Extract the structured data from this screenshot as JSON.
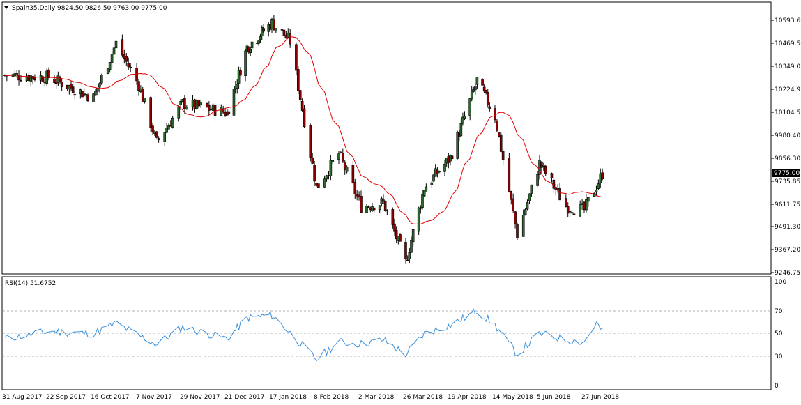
{
  "colors": {
    "background": "#ffffff",
    "frame": "#000000",
    "candle": "#000000",
    "bull_body": "#2e6b2e",
    "bear_body": "#8b0000",
    "ma_line": "#e00000",
    "rsi_line": "#3a8fd9",
    "rsi_levels": "#b0b0b0",
    "last_price_bg": "#000000",
    "last_price_text": "#ffffff"
  },
  "main_panel": {
    "title": "Spain35,Daily",
    "ohlc_text": "9824.50 9826.50 9763.00 9775.00",
    "price_ticks": [
      "10593.60",
      "10469.50",
      "10349.05",
      "10224.95",
      "10104.55",
      "9980.40",
      "9856.30",
      "9735.85",
      "9611.75",
      "9491.30",
      "9367.20",
      "9246.75"
    ],
    "last_price": "9775.00"
  },
  "rsi_panel": {
    "title": "RSI(14) 51.6752",
    "levels": [
      "100",
      "70",
      "50",
      "30",
      "0"
    ]
  },
  "x_axis": {
    "dates": [
      "31 Aug 2017",
      "22 Sep 2017",
      "16 Oct 2017",
      "7 Nov 2017",
      "29 Nov 2017",
      "21 Dec 2017",
      "17 Jan 2018",
      "8 Feb 2018",
      "2 Mar 2018",
      "26 Mar 2018",
      "19 Apr 2018",
      "14 May 2018",
      "5 Jun 2018",
      "27 Jun 2018"
    ]
  },
  "chart_data": [
    {
      "type": "candlestick",
      "title": "Spain35,Daily",
      "ylim": [
        9246.75,
        10593.6
      ],
      "overlay": "moving average (red)",
      "close_path": [
        {
          "x": "31 Aug 2017",
          "y": 10300
        },
        {
          "x": "22 Sep 2017",
          "y": 10290
        },
        {
          "x": "16 Oct 2017",
          "y": 10180
        },
        {
          "x": "27 Oct 2017",
          "y": 10470
        },
        {
          "x": "7 Nov 2017",
          "y": 10250
        },
        {
          "x": "16 Nov 2017",
          "y": 9940
        },
        {
          "x": "29 Nov 2017",
          "y": 10150
        },
        {
          "x": "21 Dec 2017",
          "y": 10100
        },
        {
          "x": "2 Jan 2018",
          "y": 10450
        },
        {
          "x": "17 Jan 2018",
          "y": 10580
        },
        {
          "x": "26 Jan 2018",
          "y": 10480
        },
        {
          "x": "8 Feb 2018",
          "y": 9700
        },
        {
          "x": "19 Feb 2018",
          "y": 9880
        },
        {
          "x": "2 Mar 2018",
          "y": 9600
        },
        {
          "x": "14 Mar 2018",
          "y": 9620
        },
        {
          "x": "26 Mar 2018",
          "y": 9300
        },
        {
          "x": "5 Apr 2018",
          "y": 9700
        },
        {
          "x": "19 Apr 2018",
          "y": 9860
        },
        {
          "x": "4 May 2018",
          "y": 10270
        },
        {
          "x": "14 May 2018",
          "y": 10080
        },
        {
          "x": "25 May 2018",
          "y": 9450
        },
        {
          "x": "5 Jun 2018",
          "y": 9830
        },
        {
          "x": "18 Jun 2018",
          "y": 9600
        },
        {
          "x": "27 Jun 2018",
          "y": 9580
        },
        {
          "x": "6 Jul 2018",
          "y": 9775
        }
      ]
    },
    {
      "type": "line",
      "title": "RSI(14) 51.6752",
      "ylim": [
        0,
        100
      ],
      "levels": [
        30,
        50,
        70
      ],
      "series": [
        {
          "values_path": [
            {
              "x": "31 Aug 2017",
              "y": 45
            },
            {
              "x": "22 Sep 2017",
              "y": 52
            },
            {
              "x": "16 Oct 2017",
              "y": 50
            },
            {
              "x": "27 Oct 2017",
              "y": 60
            },
            {
              "x": "7 Nov 2017",
              "y": 48
            },
            {
              "x": "16 Nov 2017",
              "y": 40
            },
            {
              "x": "29 Nov 2017",
              "y": 56
            },
            {
              "x": "21 Dec 2017",
              "y": 45
            },
            {
              "x": "2 Jan 2018",
              "y": 65
            },
            {
              "x": "17 Jan 2018",
              "y": 68
            },
            {
              "x": "8 Feb 2018",
              "y": 25
            },
            {
              "x": "19 Feb 2018",
              "y": 42
            },
            {
              "x": "2 Mar 2018",
              "y": 40
            },
            {
              "x": "14 Mar 2018",
              "y": 44
            },
            {
              "x": "26 Mar 2018",
              "y": 30
            },
            {
              "x": "5 Apr 2018",
              "y": 50
            },
            {
              "x": "19 Apr 2018",
              "y": 58
            },
            {
              "x": "4 May 2018",
              "y": 72
            },
            {
              "x": "14 May 2018",
              "y": 58
            },
            {
              "x": "25 May 2018",
              "y": 30
            },
            {
              "x": "5 Jun 2018",
              "y": 50
            },
            {
              "x": "18 Jun 2018",
              "y": 44
            },
            {
              "x": "27 Jun 2018",
              "y": 42
            },
            {
              "x": "3 Jul 2018",
              "y": 60
            },
            {
              "x": "6 Jul 2018",
              "y": 51.6752
            }
          ]
        }
      ]
    }
  ]
}
